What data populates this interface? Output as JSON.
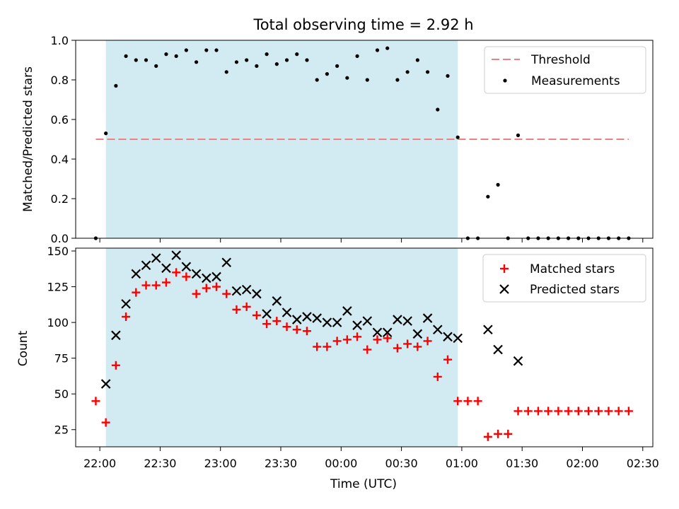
{
  "figure_title": "Total observing time = 2.92 h",
  "chart_data": [
    {
      "type": "scatter",
      "panel": "top",
      "ylabel": "Matched/Predicted stars",
      "ylim": [
        0,
        1
      ],
      "yticks": [
        0.0,
        0.2,
        0.4,
        0.6,
        0.8,
        1.0
      ],
      "ytick_labels": [
        "0.0",
        "0.2",
        "0.4",
        "0.6",
        "0.8",
        "1.0"
      ],
      "legend_placement": "upper right",
      "threshold": {
        "label": "Threshold",
        "value": 0.5,
        "x_start": "21:58",
        "x_end": "02:23",
        "color": "#f08080"
      },
      "shaded_interval": {
        "start": "22:03",
        "end": "00:58",
        "color": "#add8e6"
      },
      "series": [
        {
          "name": "Measurements",
          "marker": "dot",
          "color": "#000000",
          "x": [
            "21:58",
            "22:03",
            "22:08",
            "22:13",
            "22:18",
            "22:23",
            "22:28",
            "22:33",
            "22:38",
            "22:43",
            "22:48",
            "22:53",
            "22:58",
            "23:03",
            "23:08",
            "23:13",
            "23:18",
            "23:23",
            "23:28",
            "23:33",
            "23:38",
            "23:43",
            "23:48",
            "23:53",
            "23:58",
            "00:03",
            "00:08",
            "00:13",
            "00:18",
            "00:23",
            "00:28",
            "00:33",
            "00:38",
            "00:43",
            "00:48",
            "00:53",
            "00:58",
            "01:03",
            "01:08",
            "01:13",
            "01:18",
            "01:23",
            "01:28",
            "01:33",
            "01:38",
            "01:43",
            "01:48",
            "01:53",
            "01:58",
            "02:03",
            "02:08",
            "02:13",
            "02:18",
            "02:23"
          ],
          "values": [
            0.0,
            0.53,
            0.77,
            0.92,
            0.9,
            0.9,
            0.87,
            0.93,
            0.92,
            0.95,
            0.89,
            0.95,
            0.95,
            0.84,
            0.89,
            0.9,
            0.87,
            0.93,
            0.88,
            0.9,
            0.93,
            0.9,
            0.8,
            0.83,
            0.87,
            0.81,
            0.92,
            0.8,
            0.95,
            0.96,
            0.8,
            0.84,
            0.9,
            0.84,
            0.65,
            0.82,
            0.51,
            0.0,
            0.0,
            0.21,
            0.27,
            0.0,
            0.52,
            0.0,
            0.0,
            0.0,
            0.0,
            0.0,
            0.0,
            0.0,
            0.0,
            0.0,
            0.0,
            0.0
          ]
        }
      ]
    },
    {
      "type": "scatter",
      "panel": "bottom",
      "xlabel": "Time (UTC)",
      "ylabel": "Count",
      "ylim": [
        13,
        152
      ],
      "xlim": [
        "21:48",
        "02:35"
      ],
      "yticks": [
        25,
        50,
        75,
        100,
        125,
        150
      ],
      "ytick_labels": [
        "25",
        "50",
        "75",
        "100",
        "125",
        "150"
      ],
      "xticks": [
        "22:00",
        "22:30",
        "23:00",
        "23:30",
        "00:00",
        "00:30",
        "01:00",
        "01:30",
        "02:00",
        "02:30"
      ],
      "legend_placement": "upper right",
      "shaded_interval": {
        "start": "22:03",
        "end": "00:58",
        "color": "#add8e6"
      },
      "series": [
        {
          "name": "Matched stars",
          "marker": "plus",
          "color": "#ff0000",
          "x": [
            "21:58",
            "22:03",
            "22:08",
            "22:13",
            "22:18",
            "22:23",
            "22:28",
            "22:33",
            "22:38",
            "22:43",
            "22:48",
            "22:53",
            "22:58",
            "23:03",
            "23:08",
            "23:13",
            "23:18",
            "23:23",
            "23:28",
            "23:33",
            "23:38",
            "23:43",
            "23:48",
            "23:53",
            "23:58",
            "00:03",
            "00:08",
            "00:13",
            "00:18",
            "00:23",
            "00:28",
            "00:33",
            "00:38",
            "00:43",
            "00:48",
            "00:53",
            "00:58",
            "01:03",
            "01:08",
            "01:13",
            "01:18",
            "01:23",
            "01:28",
            "01:33",
            "01:38",
            "01:43",
            "01:48",
            "01:53",
            "01:58",
            "02:03",
            "02:08",
            "02:13",
            "02:18",
            "02:23"
          ],
          "values": [
            45,
            30,
            70,
            104,
            121,
            126,
            126,
            128,
            135,
            132,
            120,
            124,
            125,
            120,
            109,
            111,
            105,
            99,
            101,
            97,
            95,
            94,
            83,
            83,
            87,
            88,
            90,
            81,
            88,
            89,
            82,
            85,
            83,
            87,
            62,
            74,
            45,
            45,
            45,
            20,
            22,
            22,
            38,
            38,
            38,
            38,
            38,
            38,
            38,
            38,
            38,
            38,
            38,
            38
          ]
        },
        {
          "name": "Predicted stars",
          "marker": "x",
          "color": "#000000",
          "x": [
            "22:03",
            "22:08",
            "22:13",
            "22:18",
            "22:23",
            "22:28",
            "22:33",
            "22:38",
            "22:43",
            "22:48",
            "22:53",
            "22:58",
            "23:03",
            "23:08",
            "23:13",
            "23:18",
            "23:23",
            "23:28",
            "23:33",
            "23:38",
            "23:43",
            "23:48",
            "23:53",
            "23:58",
            "00:03",
            "00:08",
            "00:13",
            "00:18",
            "00:23",
            "00:28",
            "00:33",
            "00:38",
            "00:43",
            "00:48",
            "00:53",
            "00:58",
            "01:13",
            "01:18",
            "01:28"
          ],
          "values": [
            57,
            91,
            113,
            134,
            140,
            145,
            138,
            147,
            139,
            134,
            131,
            132,
            142,
            122,
            123,
            120,
            106,
            115,
            107,
            102,
            104,
            103,
            100,
            100,
            108,
            98,
            101,
            93,
            93,
            102,
            101,
            92,
            103,
            95,
            90,
            89,
            95,
            81,
            73
          ]
        }
      ]
    }
  ]
}
